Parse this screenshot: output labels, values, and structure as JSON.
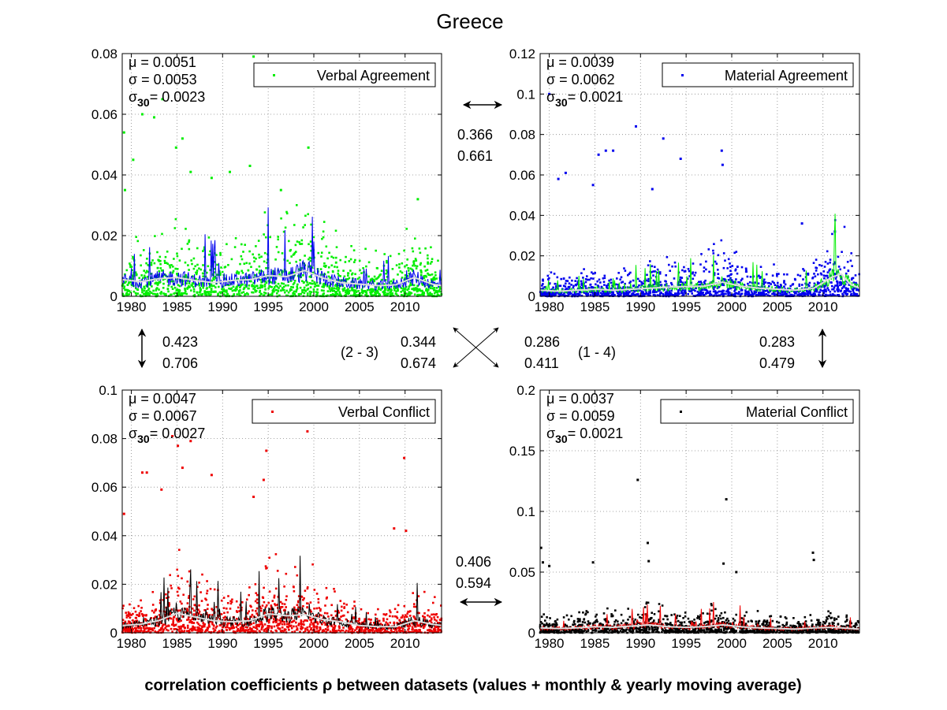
{
  "figure": {
    "title": "Greece",
    "footer": "correlation coefficients ρ between datasets (values + monthly & yearly moving average)"
  },
  "colors": {
    "verbal_agreement": "#00ee00",
    "material_agreement": "#0000ee",
    "verbal_conflict": "#ee0000",
    "material_conflict": "#000000",
    "yearly_average": "#dddddd"
  },
  "chart_data": [
    {
      "type": "scatter",
      "panel": "top-left",
      "series": [
        {
          "name": "Verbal Agreement"
        }
      ],
      "stats": {
        "mu": "0.0051",
        "sigma": "0.0053",
        "sigma30": "0.0023"
      },
      "xlim": [
        1979,
        2014
      ],
      "ylim": [
        0,
        0.08
      ],
      "xticks": [
        "1980",
        "1985",
        "1990",
        "1995",
        "2000",
        "2005",
        "2010"
      ],
      "yticks": [
        "0",
        "0.02",
        "0.04",
        "0.06",
        "0.08"
      ],
      "legend": "top-right",
      "grid": true,
      "yearly_avg_level": [
        [
          1979,
          0.0055
        ],
        [
          1981,
          0.0048
        ],
        [
          1983,
          0.0058
        ],
        [
          1985,
          0.0062
        ],
        [
          1987,
          0.0052
        ],
        [
          1989,
          0.0045
        ],
        [
          1991,
          0.0052
        ],
        [
          1993,
          0.0055
        ],
        [
          1995,
          0.0068
        ],
        [
          1997,
          0.0065
        ],
        [
          1999,
          0.0085
        ],
        [
          2001,
          0.006
        ],
        [
          2003,
          0.0045
        ],
        [
          2005,
          0.004
        ],
        [
          2007,
          0.0035
        ],
        [
          2009,
          0.0038
        ],
        [
          2011,
          0.0062
        ],
        [
          2013,
          0.004
        ],
        [
          2014,
          0.0035
        ]
      ],
      "outliers": [
        [
          1979.2,
          0.054
        ],
        [
          1979.3,
          0.035
        ],
        [
          1980.2,
          0.045
        ],
        [
          1981.2,
          0.06
        ],
        [
          1982.5,
          0.059
        ],
        [
          1983.4,
          0.065
        ],
        [
          1984.9,
          0.049
        ],
        [
          1985.6,
          0.052
        ],
        [
          1986.5,
          0.041
        ],
        [
          1988.8,
          0.039
        ],
        [
          1990.8,
          0.041
        ],
        [
          1993.0,
          0.043
        ],
        [
          1993.4,
          0.079
        ],
        [
          1996.4,
          0.035
        ],
        [
          1999.4,
          0.049
        ],
        [
          2011.4,
          0.032
        ]
      ]
    },
    {
      "type": "scatter",
      "panel": "top-right",
      "series": [
        {
          "name": "Material Agreement"
        }
      ],
      "stats": {
        "mu": "0.0039",
        "sigma": "0.0062",
        "sigma30": "0.0021"
      },
      "xlim": [
        1979,
        2014
      ],
      "ylim": [
        0,
        0.12
      ],
      "xticks": [
        "1980",
        "1985",
        "1990",
        "1995",
        "2000",
        "2005",
        "2010"
      ],
      "yticks": [
        "0",
        "0.02",
        "0.04",
        "0.06",
        "0.08",
        "0.1",
        "0.12"
      ],
      "legend": "top-right",
      "grid": true,
      "yearly_avg_level": [
        [
          1979,
          0.003
        ],
        [
          1981,
          0.0025
        ],
        [
          1983,
          0.003
        ],
        [
          1985,
          0.0035
        ],
        [
          1987,
          0.003
        ],
        [
          1989,
          0.0035
        ],
        [
          1991,
          0.004
        ],
        [
          1993,
          0.0045
        ],
        [
          1995,
          0.0048
        ],
        [
          1997,
          0.005
        ],
        [
          1999,
          0.007
        ],
        [
          2001,
          0.005
        ],
        [
          2003,
          0.004
        ],
        [
          2005,
          0.0035
        ],
        [
          2007,
          0.003
        ],
        [
          2009,
          0.004
        ],
        [
          2011,
          0.0095
        ],
        [
          2012,
          0.011
        ],
        [
          2013,
          0.006
        ],
        [
          2014,
          0.004
        ]
      ],
      "outliers": [
        [
          1980.0,
          0.1
        ],
        [
          1981.0,
          0.058
        ],
        [
          1981.8,
          0.061
        ],
        [
          1984.8,
          0.055
        ],
        [
          1985.4,
          0.07
        ],
        [
          1986.2,
          0.072
        ],
        [
          1987.0,
          0.072
        ],
        [
          1989.5,
          0.084
        ],
        [
          1991.3,
          0.053
        ],
        [
          1992.5,
          0.078
        ],
        [
          1994.4,
          0.068
        ],
        [
          1998.9,
          0.072
        ],
        [
          1999.0,
          0.065
        ],
        [
          2007.7,
          0.036
        ],
        [
          2011.3,
          0.032
        ]
      ]
    },
    {
      "type": "scatter",
      "panel": "bottom-left",
      "series": [
        {
          "name": "Verbal Conflict"
        }
      ],
      "stats": {
        "mu": "0.0047",
        "sigma": "0.0067",
        "sigma30": "0.0027"
      },
      "xlim": [
        1979,
        2014
      ],
      "ylim": [
        0,
        0.1
      ],
      "xticks": [
        "1980",
        "1985",
        "1990",
        "1995",
        "2000",
        "2005",
        "2010"
      ],
      "yticks": [
        "0",
        "0.02",
        "0.04",
        "0.06",
        "0.08",
        "0.1"
      ],
      "legend": "top-right",
      "grid": true,
      "yearly_avg_level": [
        [
          1979,
          0.003
        ],
        [
          1981,
          0.0035
        ],
        [
          1983,
          0.005
        ],
        [
          1985,
          0.008
        ],
        [
          1987,
          0.0065
        ],
        [
          1989,
          0.005
        ],
        [
          1991,
          0.0045
        ],
        [
          1993,
          0.005
        ],
        [
          1995,
          0.0078
        ],
        [
          1997,
          0.007
        ],
        [
          1999,
          0.0075
        ],
        [
          2001,
          0.0055
        ],
        [
          2003,
          0.0045
        ],
        [
          2005,
          0.003
        ],
        [
          2007,
          0.0025
        ],
        [
          2009,
          0.0025
        ],
        [
          2011,
          0.005
        ],
        [
          2013,
          0.0035
        ],
        [
          2014,
          0.003
        ]
      ],
      "outliers": [
        [
          1979.2,
          0.049
        ],
        [
          1981.2,
          0.066
        ],
        [
          1981.7,
          0.066
        ],
        [
          1983.3,
          0.059
        ],
        [
          1984.5,
          0.081
        ],
        [
          1985.1,
          0.077
        ],
        [
          1985.6,
          0.068
        ],
        [
          1986.5,
          0.079
        ],
        [
          1988.8,
          0.065
        ],
        [
          1993.4,
          0.056
        ],
        [
          1994.5,
          0.063
        ],
        [
          1994.8,
          0.075
        ],
        [
          1999.3,
          0.083
        ],
        [
          2008.8,
          0.043
        ],
        [
          2009.9,
          0.072
        ],
        [
          2010.1,
          0.042
        ]
      ]
    },
    {
      "type": "scatter",
      "panel": "bottom-right",
      "series": [
        {
          "name": "Material Conflict"
        }
      ],
      "stats": {
        "mu": "0.0037",
        "sigma": "0.0059",
        "sigma30": "0.0021"
      },
      "xlim": [
        1979,
        2014
      ],
      "ylim": [
        0,
        0.2
      ],
      "xticks": [
        "1980",
        "1985",
        "1990",
        "1995",
        "2000",
        "2005",
        "2010"
      ],
      "yticks": [
        "0",
        "0.05",
        "0.1",
        "0.15",
        "0.2"
      ],
      "legend": "top-right",
      "grid": true,
      "yearly_avg_level": [
        [
          1979,
          0.004
        ],
        [
          1981,
          0.0035
        ],
        [
          1983,
          0.004
        ],
        [
          1985,
          0.005
        ],
        [
          1987,
          0.0045
        ],
        [
          1989,
          0.0055
        ],
        [
          1991,
          0.0065
        ],
        [
          1993,
          0.005
        ],
        [
          1995,
          0.0045
        ],
        [
          1997,
          0.005
        ],
        [
          1999,
          0.0065
        ],
        [
          2001,
          0.005
        ],
        [
          2003,
          0.004
        ],
        [
          2005,
          0.0035
        ],
        [
          2007,
          0.003
        ],
        [
          2009,
          0.004
        ],
        [
          2011,
          0.0045
        ],
        [
          2013,
          0.0035
        ],
        [
          2014,
          0.003
        ]
      ],
      "outliers": [
        [
          1979.1,
          0.07
        ],
        [
          1979.3,
          0.058
        ],
        [
          1980.0,
          0.055
        ],
        [
          1984.8,
          0.058
        ],
        [
          1989.7,
          0.126
        ],
        [
          1990.8,
          0.074
        ],
        [
          1990.9,
          0.059
        ],
        [
          1999.4,
          0.11
        ],
        [
          1999.1,
          0.057
        ],
        [
          2000.5,
          0.05
        ],
        [
          2008.9,
          0.066
        ],
        [
          2009.0,
          0.06
        ]
      ]
    }
  ],
  "correlations": {
    "top_horizontal": {
      "a": "0.366",
      "b": "0.661"
    },
    "left_vertical": {
      "a": "0.423",
      "b": "0.706"
    },
    "cross_left": {
      "label": "(2 - 3)",
      "a": "0.344",
      "b": "0.674"
    },
    "cross_right": {
      "label": "(1 - 4)",
      "a": "0.286",
      "b": "0.411"
    },
    "right_vertical": {
      "a": "0.283",
      "b": "0.479"
    },
    "bottom_horizontal": {
      "a": "0.406",
      "b": "0.594"
    }
  }
}
